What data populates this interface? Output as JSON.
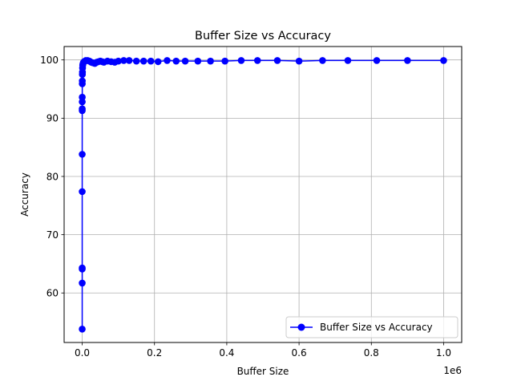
{
  "chart_data": {
    "type": "line",
    "title": "Buffer Size vs Accuracy",
    "xlabel": "Buffer Size",
    "ylabel": "Accuracy",
    "x_offset_label": "1e6",
    "xlim": [
      -0.05,
      1.05
    ],
    "x_scale_factor": 1000000,
    "ylim": [
      51.5,
      102.3
    ],
    "grid": true,
    "legend_position": "lower-right",
    "x_ticks": [
      {
        "value": 0.0,
        "label": "0.0"
      },
      {
        "value": 0.2,
        "label": "0.2"
      },
      {
        "value": 0.4,
        "label": "0.4"
      },
      {
        "value": 0.6,
        "label": "0.6"
      },
      {
        "value": 0.8,
        "label": "0.8"
      },
      {
        "value": 1.0,
        "label": "1.0"
      }
    ],
    "y_ticks": [
      {
        "value": 60,
        "label": "60"
      },
      {
        "value": 70,
        "label": "70"
      },
      {
        "value": 80,
        "label": "80"
      },
      {
        "value": 90,
        "label": "90"
      },
      {
        "value": 100,
        "label": "100"
      }
    ],
    "series": [
      {
        "name": "Buffer Size vs Accuracy",
        "color": "#0000ff",
        "marker": "circle",
        "points": [
          [
            1,
            53.8
          ],
          [
            2,
            61.7
          ],
          [
            3,
            64.1
          ],
          [
            5,
            64.3
          ],
          [
            10,
            77.4
          ],
          [
            20,
            83.8
          ],
          [
            50,
            91.3
          ],
          [
            80,
            91.6
          ],
          [
            100,
            92.8
          ],
          [
            150,
            93.6
          ],
          [
            200,
            95.9
          ],
          [
            300,
            96.4
          ],
          [
            500,
            97.5
          ],
          [
            700,
            97.9
          ],
          [
            1000,
            98.6
          ],
          [
            1500,
            99.1
          ],
          [
            2000,
            99.3
          ],
          [
            3000,
            99.5
          ],
          [
            5000,
            99.7
          ],
          [
            8000,
            99.8
          ],
          [
            10000,
            99.9
          ],
          [
            15000,
            99.9
          ],
          [
            20000,
            99.8
          ],
          [
            25000,
            99.6
          ],
          [
            30000,
            99.5
          ],
          [
            35000,
            99.4
          ],
          [
            40000,
            99.6
          ],
          [
            45000,
            99.7
          ],
          [
            50000,
            99.8
          ],
          [
            55000,
            99.7
          ],
          [
            60000,
            99.6
          ],
          [
            70000,
            99.8
          ],
          [
            80000,
            99.7
          ],
          [
            90000,
            99.6
          ],
          [
            100000,
            99.8
          ],
          [
            115000,
            99.9
          ],
          [
            130000,
            99.9
          ],
          [
            150000,
            99.8
          ],
          [
            170000,
            99.8
          ],
          [
            190000,
            99.8
          ],
          [
            210000,
            99.7
          ],
          [
            235000,
            99.9
          ],
          [
            260000,
            99.8
          ],
          [
            285000,
            99.8
          ],
          [
            320000,
            99.8
          ],
          [
            355000,
            99.8
          ],
          [
            395000,
            99.8
          ],
          [
            440000,
            99.9
          ],
          [
            485000,
            99.9
          ],
          [
            540000,
            99.9
          ],
          [
            600000,
            99.8
          ],
          [
            665000,
            99.9
          ],
          [
            735000,
            99.9
          ],
          [
            815000,
            99.9
          ],
          [
            900000,
            99.9
          ],
          [
            1000000,
            99.9
          ]
        ]
      }
    ]
  }
}
